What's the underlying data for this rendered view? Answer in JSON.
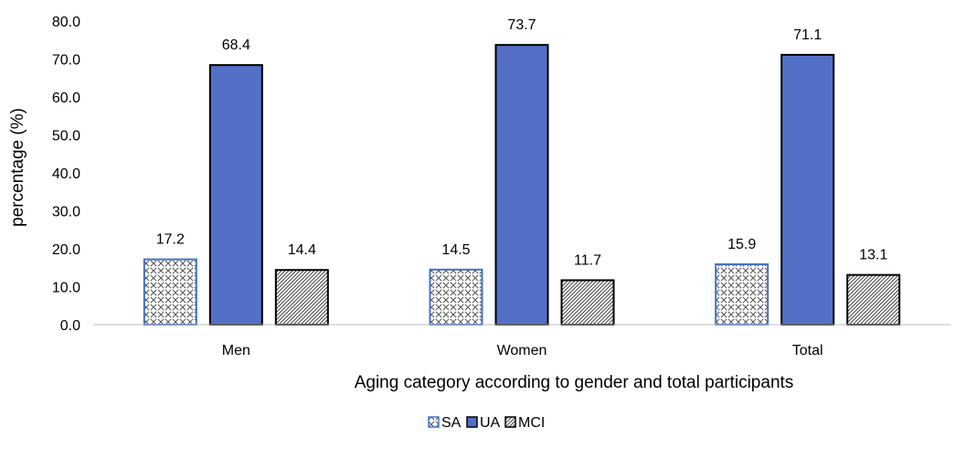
{
  "chart_data": {
    "type": "bar",
    "title": "",
    "xlabel": "Aging  category according to gender and total participants",
    "ylabel": "percentage (%)",
    "categories": [
      "Men",
      "Women",
      "Total"
    ],
    "series": [
      {
        "name": "SA",
        "values": [
          17.2,
          14.5,
          15.9
        ],
        "pattern": "crosshatch",
        "color": "#4472C4"
      },
      {
        "name": "UA",
        "values": [
          68.4,
          73.7,
          71.1
        ],
        "pattern": "solid",
        "color": "#5470C6"
      },
      {
        "name": "MCI",
        "values": [
          14.4,
          11.7,
          13.1
        ],
        "pattern": "diagonal",
        "color": "#000000"
      }
    ],
    "ylim": [
      0,
      80
    ],
    "yticks": [
      "0.0",
      "10.0",
      "20.0",
      "30.0",
      "40.0",
      "50.0",
      "60.0",
      "70.0",
      "80.0"
    ],
    "grid": false,
    "legend": "bottom-center",
    "data_label_format": "one-decimal"
  }
}
